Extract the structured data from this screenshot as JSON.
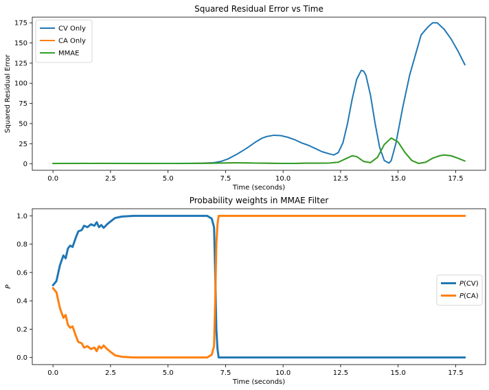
{
  "chart_data": [
    {
      "type": "line",
      "title": "Squared Residual Error vs Time",
      "xlabel": "Time (seconds)",
      "ylabel": "Squared Residual Error",
      "xlim": [
        -0.9,
        18.8
      ],
      "ylim": [
        -8,
        182
      ],
      "xticks": [
        0,
        2.5,
        5,
        7.5,
        10,
        12.5,
        15,
        17.5
      ],
      "xtick_labels": [
        "0.0",
        "2.5",
        "5.0",
        "7.5",
        "10.0",
        "12.5",
        "15.0",
        "17.5"
      ],
      "yticks": [
        0,
        25,
        50,
        75,
        100,
        125,
        150,
        175
      ],
      "ytick_labels": [
        "0",
        "25",
        "50",
        "75",
        "100",
        "125",
        "150",
        "175"
      ],
      "grid": false,
      "legend_position": "upper-left",
      "series": [
        {
          "name": "CV Only",
          "color": "#1f77b4",
          "x": [
            0,
            1,
            2,
            3,
            4,
            5,
            6,
            6.5,
            7,
            7.3,
            7.6,
            8,
            8.4,
            8.8,
            9.1,
            9.3,
            9.6,
            9.9,
            10.2,
            10.5,
            10.8,
            11.1,
            11.4,
            11.7,
            12,
            12.2,
            12.4,
            12.6,
            12.8,
            13,
            13.2,
            13.4,
            13.5,
            13.6,
            13.8,
            14,
            14.2,
            14.4,
            14.6,
            14.7,
            14.9,
            15.2,
            15.5,
            15.8,
            16,
            16.3,
            16.5,
            16.7,
            17,
            17.3,
            17.6,
            17.9
          ],
          "y": [
            0.5,
            0.5,
            0.5,
            0.5,
            0.5,
            0.5,
            0.6,
            0.8,
            1.5,
            3,
            6,
            12,
            19,
            27,
            32,
            34,
            35.5,
            35,
            33,
            30,
            26,
            23,
            19,
            15,
            12.5,
            11,
            14,
            26,
            50,
            80,
            105,
            116,
            115,
            110,
            85,
            50,
            20,
            4,
            1,
            4,
            25,
            70,
            110,
            140,
            160,
            170,
            175,
            175,
            167,
            155,
            140,
            123
          ]
        },
        {
          "name": "CA Only",
          "color": "#ff7f0e",
          "x": [
            0,
            2,
            4,
            6,
            6.8,
            7.2,
            7.6,
            8,
            8.4,
            8.8,
            9.2,
            9.6,
            10,
            10.5,
            11,
            11.5,
            12,
            12.4,
            12.7,
            13,
            13.2,
            13.5,
            13.8,
            14.1,
            14.4,
            14.7,
            15,
            15.3,
            15.6,
            15.9,
            16.2,
            16.5,
            16.8,
            17,
            17.3,
            17.6,
            17.9
          ],
          "y": [
            0.4,
            0.5,
            0.4,
            0.5,
            0.7,
            1,
            1.2,
            1.3,
            1.2,
            1,
            0.8,
            0.6,
            0.5,
            0.5,
            0.8,
            0.8,
            1,
            2,
            6,
            10,
            9,
            3,
            1.5,
            8,
            24,
            32,
            27,
            14,
            4,
            0.5,
            2,
            7,
            10,
            11,
            10,
            7,
            3.5
          ]
        },
        {
          "name": "MMAE",
          "color": "#2ca02c",
          "x": [
            0,
            2,
            4,
            6,
            6.8,
            7.2,
            7.6,
            8,
            8.4,
            8.8,
            9.2,
            9.6,
            10,
            10.5,
            11,
            11.5,
            12,
            12.4,
            12.7,
            13,
            13.2,
            13.5,
            13.8,
            14.1,
            14.4,
            14.7,
            15,
            15.3,
            15.6,
            15.9,
            16.2,
            16.5,
            16.8,
            17,
            17.3,
            17.6,
            17.9
          ],
          "y": [
            0.5,
            0.6,
            0.5,
            0.5,
            0.7,
            1,
            1.2,
            1.3,
            1.2,
            1,
            0.8,
            0.6,
            0.5,
            0.5,
            0.8,
            0.8,
            1,
            2,
            6,
            10,
            9,
            3,
            1.5,
            8,
            24,
            32,
            27,
            14,
            4,
            0.5,
            2,
            7,
            10,
            11,
            10,
            7,
            3.5
          ]
        }
      ]
    },
    {
      "type": "line",
      "title": "Probability weights in MMAE Filter",
      "xlabel": "Time (seconds)",
      "ylabel": "P",
      "xlim": [
        -0.9,
        18.8
      ],
      "ylim": [
        -0.05,
        1.05
      ],
      "xticks": [
        0,
        2.5,
        5,
        7.5,
        10,
        12.5,
        15,
        17.5
      ],
      "xtick_labels": [
        "0.0",
        "2.5",
        "5.0",
        "7.5",
        "10.0",
        "12.5",
        "15.0",
        "17.5"
      ],
      "yticks": [
        0,
        0.2,
        0.4,
        0.6,
        0.8,
        1.0
      ],
      "ytick_labels": [
        "0.0",
        "0.2",
        "0.4",
        "0.6",
        "0.8",
        "1.0"
      ],
      "grid": false,
      "legend_position": "center-right",
      "series": [
        {
          "name": "P(CV)",
          "name_italic": "P",
          "name_rest": "(CV)",
          "color": "#1f77b4",
          "x": [
            0,
            0.15,
            0.3,
            0.45,
            0.55,
            0.65,
            0.75,
            0.85,
            1.0,
            1.1,
            1.25,
            1.35,
            1.5,
            1.65,
            1.8,
            1.9,
            2.0,
            2.1,
            2.2,
            2.35,
            2.5,
            2.7,
            3.0,
            3.5,
            4.0,
            5.0,
            6.0,
            6.7,
            6.9,
            7.0,
            7.05,
            7.1,
            7.15,
            7.2,
            8,
            10,
            12,
            14,
            16,
            17.9
          ],
          "y": [
            0.51,
            0.54,
            0.65,
            0.72,
            0.7,
            0.77,
            0.79,
            0.78,
            0.85,
            0.89,
            0.9,
            0.93,
            0.92,
            0.94,
            0.93,
            0.955,
            0.92,
            0.935,
            0.915,
            0.94,
            0.96,
            0.985,
            0.995,
            1.0,
            1.0,
            1.0,
            1.0,
            1.0,
            0.98,
            0.92,
            0.6,
            0.2,
            0.06,
            0.0,
            0.0,
            0.0,
            0.0,
            0.0,
            0.0,
            0.0
          ]
        },
        {
          "name": "P(CA)",
          "name_italic": "P",
          "name_rest": "(CA)",
          "color": "#ff7f0e",
          "x": [
            0,
            0.15,
            0.3,
            0.45,
            0.55,
            0.65,
            0.75,
            0.85,
            1.0,
            1.1,
            1.25,
            1.35,
            1.5,
            1.65,
            1.8,
            1.9,
            2.0,
            2.1,
            2.2,
            2.35,
            2.5,
            2.7,
            3.0,
            3.5,
            4.0,
            5.0,
            6.0,
            6.7,
            6.9,
            7.0,
            7.05,
            7.1,
            7.15,
            7.2,
            8,
            10,
            12,
            14,
            16,
            17.9
          ],
          "y": [
            0.49,
            0.46,
            0.35,
            0.28,
            0.3,
            0.23,
            0.21,
            0.22,
            0.15,
            0.11,
            0.1,
            0.07,
            0.08,
            0.06,
            0.07,
            0.045,
            0.08,
            0.065,
            0.085,
            0.06,
            0.04,
            0.015,
            0.005,
            0.0,
            0.0,
            0.0,
            0.0,
            0.0,
            0.02,
            0.08,
            0.4,
            0.8,
            0.94,
            1.0,
            1.0,
            1.0,
            1.0,
            1.0,
            1.0,
            1.0
          ]
        }
      ]
    }
  ]
}
